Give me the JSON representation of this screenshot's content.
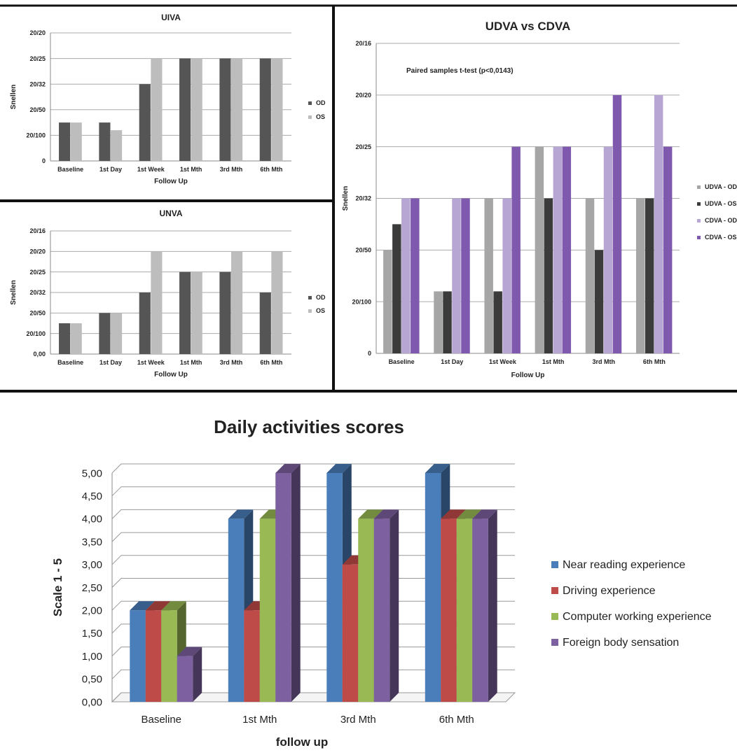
{
  "chart_data": [
    {
      "id": "uiva",
      "type": "bar",
      "title": "UIVA",
      "xlabel": "Follow Up",
      "ylabel": "Snellen",
      "y_ticks": [
        "0",
        "20/100",
        "20/50",
        "20/32",
        "20/25",
        "20/20"
      ],
      "y_scale": "ordinal-snellen-levels",
      "categories": [
        "Baseline",
        "1st Day",
        "1st Week",
        "1st Mth",
        "3rd Mth",
        "6th Mth"
      ],
      "series": [
        {
          "name": "OD",
          "color": "#555555",
          "values": [
            1.5,
            1.5,
            3.0,
            4.0,
            4.0,
            4.0
          ]
        },
        {
          "name": "OS",
          "color": "#bdbdbd",
          "values": [
            1.5,
            1.2,
            4.0,
            4.0,
            4.0,
            4.0
          ]
        }
      ],
      "legend": "right"
    },
    {
      "id": "unva",
      "type": "bar",
      "title": "UNVA",
      "xlabel": "Follow Up",
      "ylabel": "Snellen",
      "y_ticks": [
        "0,00",
        "20/100",
        "20/50",
        "20/32",
        "20/25",
        "20/20",
        "20/16"
      ],
      "y_scale": "ordinal-snellen-levels",
      "categories": [
        "Baseline",
        "1st Day",
        "1st Week",
        "1st Mth",
        "3rd Mth",
        "6th Mth"
      ],
      "series": [
        {
          "name": "OD",
          "color": "#555555",
          "values": [
            1.5,
            2.0,
            3.0,
            4.0,
            4.0,
            3.0
          ]
        },
        {
          "name": "OS",
          "color": "#bdbdbd",
          "values": [
            1.5,
            2.0,
            5.0,
            4.0,
            5.0,
            5.0
          ]
        }
      ],
      "legend": "right"
    },
    {
      "id": "udva_cdva",
      "type": "bar",
      "title": "UDVA vs CDVA",
      "xlabel": "Follow Up",
      "ylabel": "Snellen",
      "annotation": "Paired samples t-test (p<0,0143)",
      "y_ticks": [
        "0",
        "20/100",
        "20/50",
        "20/32",
        "20/25",
        "20/20",
        "20/16"
      ],
      "y_scale": "ordinal-snellen-levels",
      "categories": [
        "Baseline",
        "1st Day",
        "1st Week",
        "1st Mth",
        "3rd Mth",
        "6th Mth"
      ],
      "series": [
        {
          "name": "UDVA - OD",
          "color": "#a6a6a6",
          "values": [
            2.0,
            1.2,
            3.0,
            4.0,
            3.0,
            3.0
          ]
        },
        {
          "name": "UDVA - OS",
          "color": "#3b3b3b",
          "values": [
            2.5,
            1.2,
            1.2,
            3.0,
            2.0,
            3.0
          ]
        },
        {
          "name": "CDVA - OD",
          "color": "#b7a6d4",
          "values": [
            3.0,
            3.0,
            3.0,
            4.0,
            4.0,
            5.0
          ]
        },
        {
          "name": "CDVA - OS",
          "color": "#7e59ad",
          "values": [
            3.0,
            3.0,
            4.0,
            4.0,
            5.0,
            4.0
          ]
        }
      ],
      "legend": "right"
    },
    {
      "id": "daily",
      "type": "bar",
      "title": "Daily activities scores",
      "xlabel": "follow up",
      "ylabel": "Scale 1 - 5",
      "y_ticks": [
        "0,00",
        "0,50",
        "1,00",
        "1,50",
        "2,00",
        "2,50",
        "3,00",
        "3,50",
        "4,00",
        "4,50",
        "5,00"
      ],
      "ylim": [
        0,
        5
      ],
      "categories": [
        "Baseline",
        "1st Mth",
        "3rd Mth",
        "6th Mth"
      ],
      "series": [
        {
          "name": "Near reading experience",
          "color": "#4a7ebb",
          "values": [
            2.0,
            4.0,
            5.0,
            5.0
          ]
        },
        {
          "name": "Driving experience",
          "color": "#be4b48",
          "values": [
            2.0,
            2.0,
            3.0,
            4.0
          ]
        },
        {
          "name": "Computer working experience",
          "color": "#98b954",
          "values": [
            2.0,
            4.0,
            4.0,
            4.0
          ]
        },
        {
          "name": "Foreign body sensation",
          "color": "#7d60a0",
          "values": [
            1.0,
            5.0,
            4.0,
            4.0
          ]
        }
      ],
      "legend": "right",
      "style": "3d-columns"
    }
  ]
}
